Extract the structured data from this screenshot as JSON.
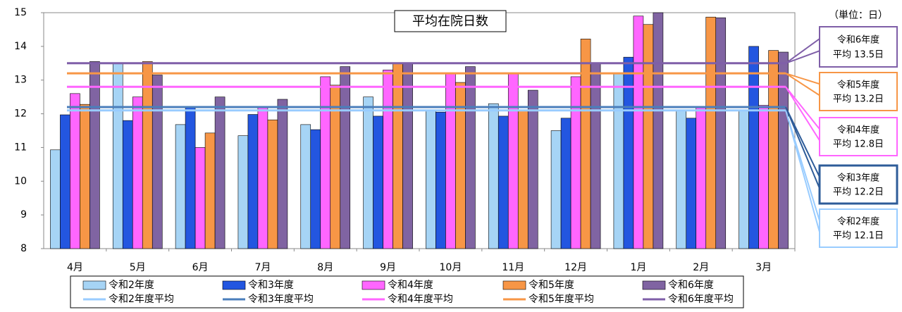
{
  "chart_data": {
    "type": "bar",
    "title": "平均在院日数",
    "unit_label": "（単位：日）",
    "categories": [
      "4月",
      "5月",
      "6月",
      "7月",
      "8月",
      "9月",
      "10月",
      "11月",
      "12月",
      "1月",
      "2月",
      "3月"
    ],
    "series": [
      {
        "name": "令和2年度",
        "color": "#a6d4f5",
        "values": [
          10.93,
          13.5,
          11.68,
          11.35,
          11.68,
          12.5,
          12.1,
          12.3,
          11.5,
          13.2,
          12.1,
          12.1
        ]
      },
      {
        "name": "令和3年度",
        "color": "#2356e0",
        "values": [
          11.97,
          11.8,
          12.2,
          11.98,
          11.53,
          11.93,
          12.05,
          11.93,
          11.87,
          13.68,
          11.87,
          14.0
        ]
      },
      {
        "name": "令和4年度",
        "color": "#ff66ff",
        "values": [
          12.6,
          12.5,
          11.0,
          12.2,
          13.1,
          13.3,
          13.2,
          13.2,
          13.1,
          14.9,
          12.2,
          12.25
        ]
      },
      {
        "name": "令和5年度",
        "color": "#f79646",
        "values": [
          12.28,
          13.55,
          11.43,
          11.82,
          12.85,
          13.5,
          12.93,
          12.1,
          14.22,
          14.65,
          14.87,
          13.88
        ]
      },
      {
        "name": "令和6年度",
        "color": "#8064a2",
        "values": [
          13.55,
          13.15,
          12.5,
          12.43,
          13.4,
          13.5,
          13.4,
          12.7,
          13.5,
          15.0,
          14.85,
          13.83
        ]
      }
    ],
    "lines": [
      {
        "name": "令和2年度平均",
        "color": "#99ccff",
        "border": "#99ccff",
        "value": 12.1,
        "callout": [
          "令和2年度",
          "平均 12.1日"
        ]
      },
      {
        "name": "令和3年度平均",
        "color": "#4a7ebb",
        "border": "#2e5c99",
        "value": 12.2,
        "callout": [
          "令和3年度",
          "平均 12.2日"
        ]
      },
      {
        "name": "令和4年度平均",
        "color": "#ff66ff",
        "border": "#ff66ff",
        "value": 12.8,
        "callout": [
          "令和4年度",
          "平均 12.8日"
        ]
      },
      {
        "name": "令和5年度平均",
        "color": "#f79646",
        "border": "#f79646",
        "value": 13.2,
        "callout": [
          "令和5年度",
          "平均 13.2日"
        ]
      },
      {
        "name": "令和6年度平均",
        "color": "#7f5fa8",
        "border": "#7f5fa8",
        "value": 13.5,
        "callout": [
          "令和6年度",
          "平均 13.5日"
        ]
      }
    ],
    "ylim": [
      8,
      15
    ],
    "yticks": [
      8,
      9,
      10,
      11,
      12,
      13,
      14,
      15
    ]
  }
}
